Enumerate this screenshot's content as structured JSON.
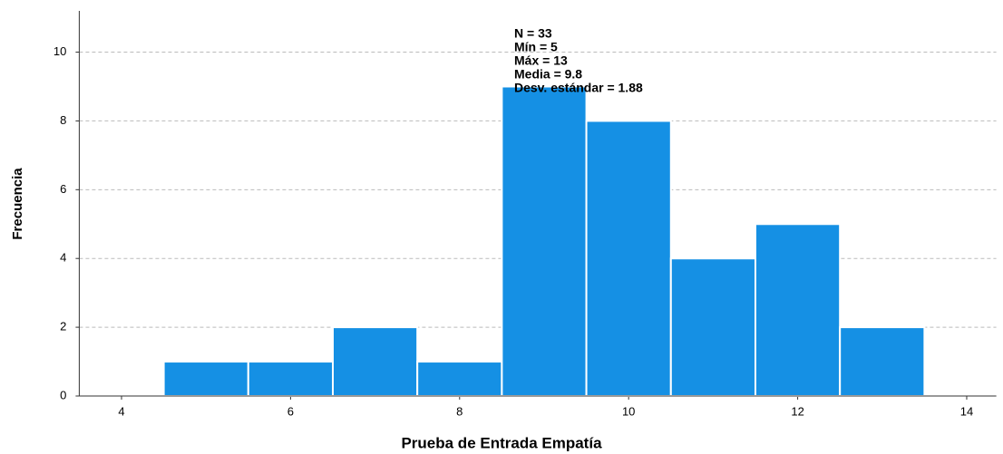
{
  "chart_data": {
    "type": "histogram",
    "x_label": "Prueba de Entrada Empatía",
    "y_label": "Frecuencia",
    "bins": [
      4.5,
      5.5,
      6.5,
      7.5,
      8.5,
      9.5,
      10.5,
      11.5,
      12.5,
      13.5
    ],
    "values": [
      1,
      1,
      2,
      1,
      9,
      8,
      4,
      5,
      2
    ],
    "color": "#1590e4",
    "xlim": [
      3.5,
      14.35
    ],
    "xticks": [
      4,
      6,
      8,
      10,
      12,
      14
    ],
    "ylim": [
      0,
      11.2
    ],
    "yticks": [
      0,
      2,
      4,
      6,
      8,
      10
    ],
    "grid": true,
    "annotations": [
      "N = 33",
      "Mín = 5",
      "Máx = 13",
      "Media = 9.8",
      "Desv. estándar = 1.88"
    ]
  }
}
